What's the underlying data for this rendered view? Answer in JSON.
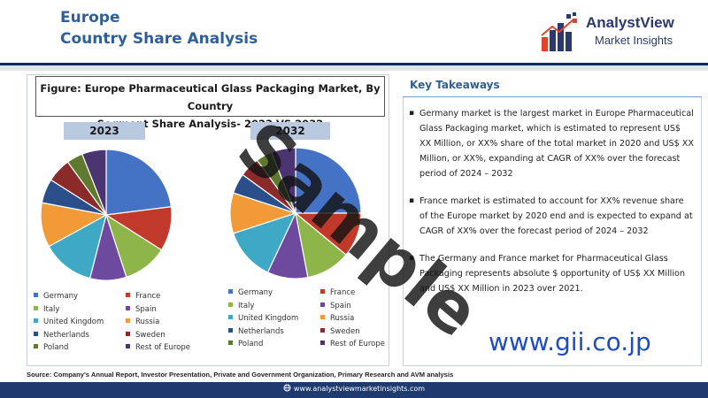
{
  "header": {
    "title_line1": "Europe",
    "title_line2": "Country Share Analysis"
  },
  "logo": {
    "name": "AnalystView",
    "sub": "Market Insights"
  },
  "figure": {
    "title_line1": "Figure: Europe Pharmaceutical Glass Packaging Market, By Country",
    "title_line2": "Segment Share Analysis- 2023 VS 2032"
  },
  "chart_data": [
    {
      "type": "pie",
      "title": "2023",
      "labels": [
        "Germany",
        "France",
        "Italy",
        "Spain",
        "United Kingdom",
        "Russia",
        "Netherlands",
        "Sweden",
        "Poland",
        "Rest of Europe"
      ],
      "values": [
        23,
        11,
        11,
        9,
        13,
        11,
        6,
        6,
        4,
        6
      ],
      "colors": [
        "#4472c4",
        "#c0392b",
        "#8db54a",
        "#6e4a9e",
        "#3fa8c4",
        "#f39a38",
        "#2a4f8a",
        "#8b2a2a",
        "#5f7a2e",
        "#4a3570"
      ],
      "legend_position": "bottom"
    },
    {
      "type": "pie",
      "title": "2032",
      "labels": [
        "Germany",
        "France",
        "Italy",
        "Spain",
        "United Kingdom",
        "Russia",
        "Netherlands",
        "Sweden",
        "Poland",
        "Rest of Europe"
      ],
      "values": [
        25,
        11,
        11,
        10,
        13,
        10,
        5,
        5,
        4,
        6
      ],
      "colors": [
        "#4472c4",
        "#c0392b",
        "#8db54a",
        "#6e4a9e",
        "#3fa8c4",
        "#f39a38",
        "#2a4f8a",
        "#8b2a2a",
        "#5f7a2e",
        "#4a3570"
      ],
      "legend_position": "bottom"
    }
  ],
  "takeaways": {
    "title": "Key Takeaways",
    "items": [
      "Germany market is the largest market in Europe Pharmaceutical Glass Packaging market, which is estimated to represent US$ XX Million, or XX% share of the total market in 2020 and US$ XX Million, or XX%, expanding at CAGR of XX% over the forecast period of 2024 – 2032",
      "France market is estimated to account for XX% revenue share of the Europe market by 2020 end and is expected to expand at CAGR of XX% over the forecast period of 2024 – 2032",
      "The Germany and France market for Pharmaceutical Glass Packaging represents absolute $ opportunity of US$ XX Million and US$ XX Million in 2023 over 2021."
    ]
  },
  "watermark": "Sample",
  "url_mark": "www.gii.co.jp",
  "source": "Source: Company's Annual Report, Investor Presentation, Private and Government Organization, Primary Research and AVM analysis",
  "footer_url": "www.analystviewmarketinsights.com"
}
